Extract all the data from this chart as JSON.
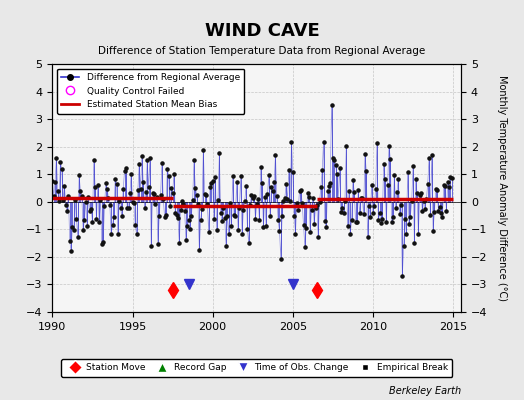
{
  "title": "WIND CAVE",
  "subtitle": "Difference of Station Temperature Data from Regional Average",
  "ylabel": "Monthly Temperature Anomaly Difference (°C)",
  "xlabel_credit": "Berkeley Earth",
  "xlim": [
    1990,
    2015.5
  ],
  "ylim": [
    -4,
    5
  ],
  "yticks": [
    -4,
    -3,
    -2,
    -1,
    0,
    1,
    2,
    3,
    4,
    5
  ],
  "xticks": [
    1990,
    1995,
    2000,
    2005,
    2010,
    2015
  ],
  "mean_bias_segments": [
    {
      "x": [
        1990,
        1997.5
      ],
      "y": [
        0.15,
        0.15
      ]
    },
    {
      "x": [
        1997.5,
        2006.5
      ],
      "y": [
        -0.15,
        -0.15
      ]
    },
    {
      "x": [
        2006.5,
        2015
      ],
      "y": [
        0.1,
        0.1
      ]
    }
  ],
  "station_moves": [
    1997.5,
    2006.5
  ],
  "obs_changes": [
    1998.5,
    2005.0
  ],
  "background_color": "#e8e8e8",
  "plot_bg_color": "#f5f5f5",
  "line_color": "#3333cc",
  "marker_color": "#111111",
  "bias_color": "#cc0000",
  "seed": 42
}
